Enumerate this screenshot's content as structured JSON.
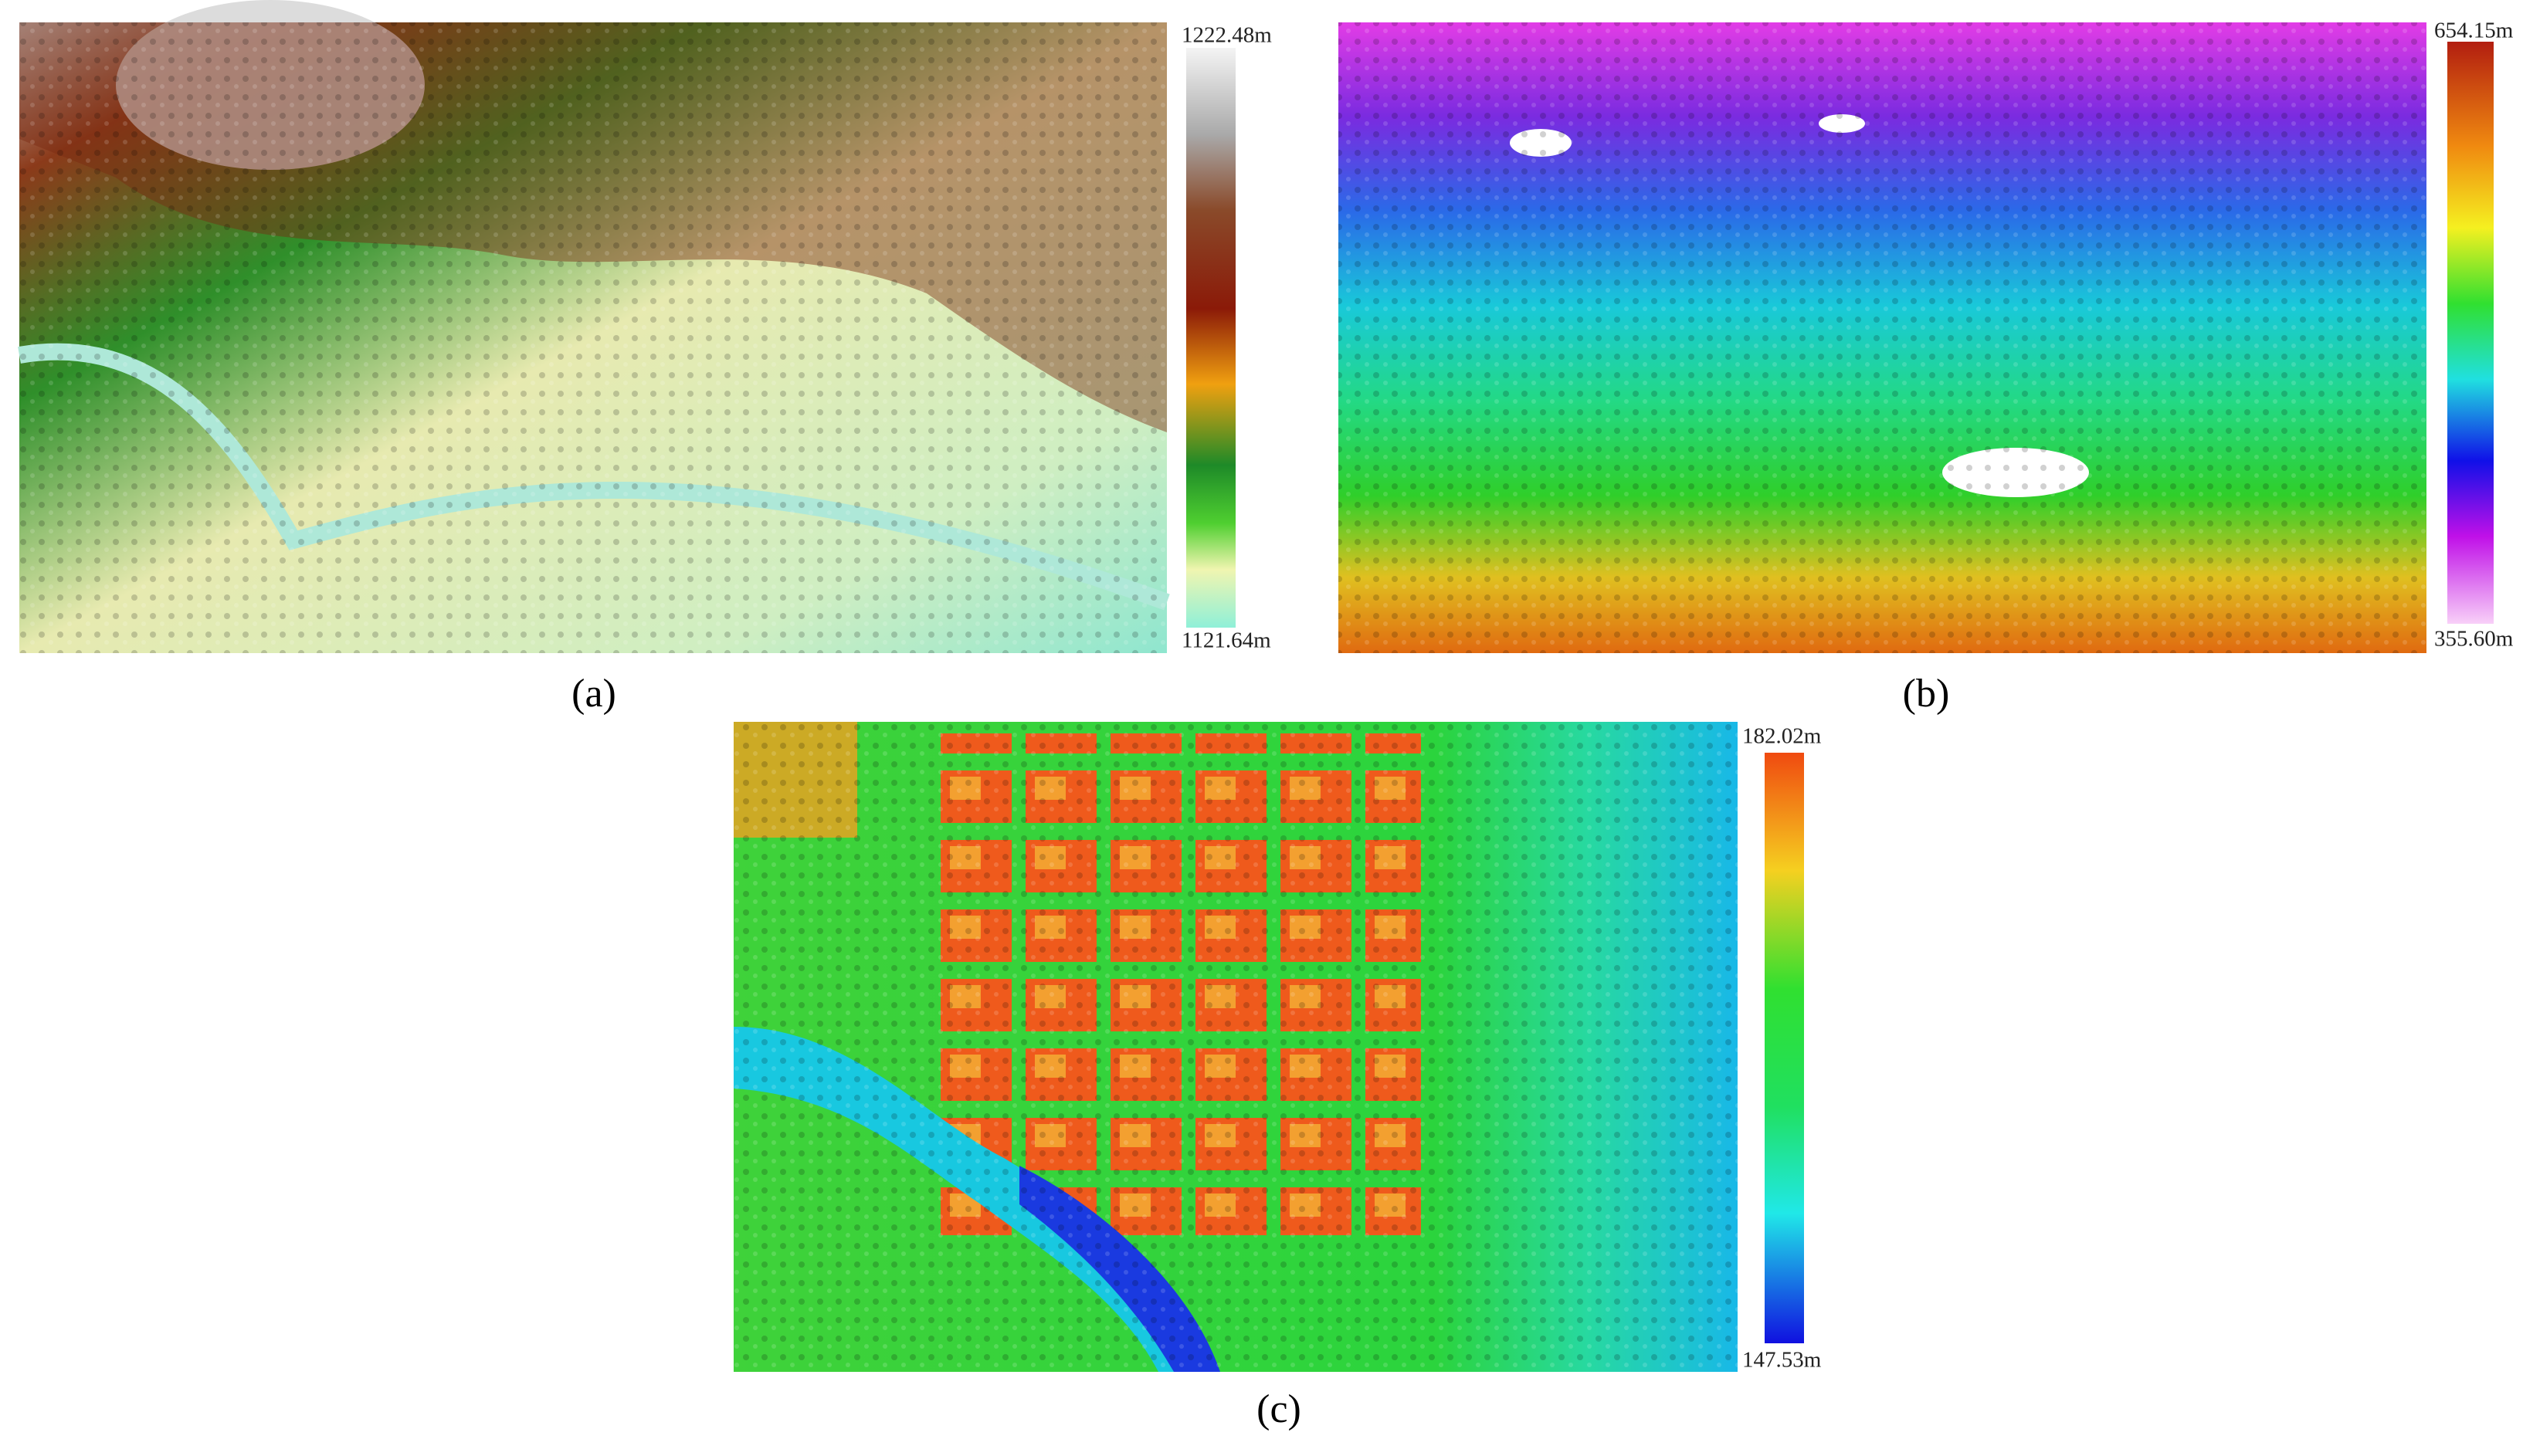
{
  "panels": [
    {
      "caption": "(a)",
      "colorbar_max": "1222.48m",
      "colorbar_min": "1121.64m"
    },
    {
      "caption": "(b)",
      "colorbar_max": "654.15m",
      "colorbar_min": "355.60m"
    },
    {
      "caption": "(c)",
      "colorbar_max": "182.02m",
      "colorbar_min": "147.53m"
    }
  ]
}
